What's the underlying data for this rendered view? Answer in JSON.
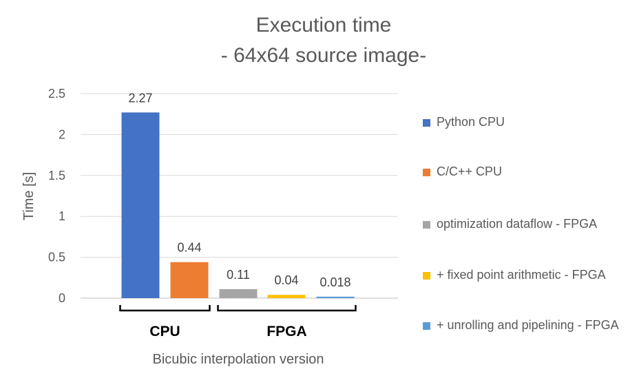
{
  "chart_data": {
    "type": "bar",
    "title": "Execution time",
    "subtitle": "- 64x64 source image-",
    "xlabel": "Bicubic interpolation version",
    "ylabel": "Time [s]",
    "ylim": [
      0,
      2.5
    ],
    "yticks": [
      "0",
      "0.5",
      "1",
      "1.5",
      "2",
      "2.5"
    ],
    "grid": true,
    "legend_position": "right",
    "series": [
      {
        "name": "Python CPU",
        "value": 2.27,
        "label": "2.27",
        "color": "#4472C4"
      },
      {
        "name": "C/C++ CPU",
        "value": 0.44,
        "label": "0.44",
        "color": "#ED7D31"
      },
      {
        "name": "optimization dataflow - FPGA",
        "value": 0.11,
        "label": "0.11",
        "color": "#A5A5A5"
      },
      {
        "name": "+ fixed point arithmetic - FPGA",
        "value": 0.04,
        "label": "0.04",
        "color": "#FFC000"
      },
      {
        "name": "+ unrolling and pipelining - FPGA",
        "value": 0.018,
        "label": "0.018",
        "color": "#5B9BD5"
      }
    ],
    "groups": [
      {
        "label": "CPU",
        "members": [
          0,
          1
        ]
      },
      {
        "label": "FPGA",
        "members": [
          2,
          3,
          4
        ]
      }
    ]
  }
}
